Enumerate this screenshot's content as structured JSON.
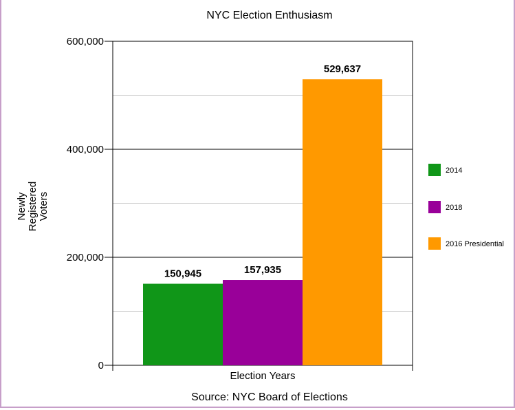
{
  "chart_data": {
    "type": "bar",
    "title": "NYC Election Enthusiasm",
    "xlabel": "Election Years",
    "ylabel": [
      "Newly",
      "Registered",
      "Voters"
    ],
    "categories": [
      "2014",
      "2018",
      "2016 Presidential"
    ],
    "values": [
      150945,
      157935,
      529637
    ],
    "value_labels": [
      "150,945",
      "157,935",
      "529,637"
    ],
    "colors": [
      "#109618",
      "#990099",
      "#ff9900"
    ],
    "ylim": [
      0,
      600000
    ],
    "y_ticks": [
      0,
      200000,
      400000,
      600000
    ],
    "y_tick_labels": [
      "0",
      "200,000",
      "400,000",
      "600,000"
    ],
    "minor_gridlines": [
      100000,
      300000,
      500000
    ],
    "grid": true,
    "legend_position": "right",
    "source": "Source: NYC Board of Elections"
  }
}
